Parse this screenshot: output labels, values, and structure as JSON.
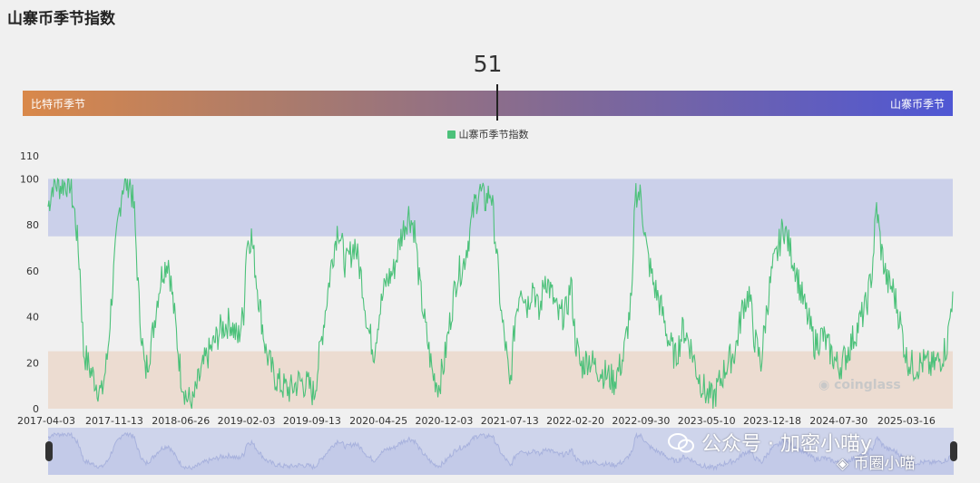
{
  "page": {
    "title": "山寨币季节指数"
  },
  "gauge": {
    "value": 51,
    "value_text": "51",
    "left_label": "比特币季节",
    "right_label": "山寨币季节"
  },
  "colors": {
    "series": "#4cc17a",
    "altseason_band": "#cbd0ea",
    "bitcoin_band": "#ecdcd1",
    "navigator_line": "#a8b2dd"
  },
  "watermark": {
    "wechat_label": "公众号 · 加密小喵y",
    "account_label": "币圈小喵",
    "wechat_icon": "wechat-icon",
    "account_icon": "binance-diamond-icon"
  },
  "brand": {
    "name": "coinglass",
    "icon": "coinglass-icon"
  },
  "chart_data": {
    "type": "line",
    "title": "山寨币季节指数",
    "legend": [
      "山寨币季节指数"
    ],
    "legend_position": "top-center",
    "ylim": [
      0,
      110
    ],
    "yticks": [
      0,
      20,
      40,
      60,
      80,
      100,
      110
    ],
    "ytick_labels": [
      "0",
      "20",
      "40",
      "60",
      "80",
      "100",
      "110"
    ],
    "xlim": [
      "2017-04-03",
      "2025-08-20"
    ],
    "xtick_labels": [
      "2017-04-03",
      "2017-11-13",
      "2018-06-26",
      "2019-02-03",
      "2019-09-13",
      "2020-04-25",
      "2020-12-03",
      "2021-07-13",
      "2022-02-20",
      "2022-09-30",
      "2023-05-10",
      "2023-12-18",
      "2024-07-30",
      "2025-03-16"
    ],
    "bands": [
      {
        "name": "altcoin season zone",
        "from": 75,
        "to": 100
      },
      {
        "name": "bitcoin season zone",
        "from": 0,
        "to": 25
      }
    ],
    "series": [
      {
        "name": "山寨币季节指数",
        "points": [
          [
            "2017-04-03",
            88
          ],
          [
            "2017-04-20",
            98
          ],
          [
            "2017-05-15",
            97
          ],
          [
            "2017-06-15",
            99
          ],
          [
            "2017-07-05",
            82
          ],
          [
            "2017-07-20",
            60
          ],
          [
            "2017-08-01",
            25
          ],
          [
            "2017-08-20",
            18
          ],
          [
            "2017-09-10",
            12
          ],
          [
            "2017-10-01",
            6
          ],
          [
            "2017-10-20",
            22
          ],
          [
            "2017-11-05",
            50
          ],
          [
            "2017-11-25",
            80
          ],
          [
            "2017-12-10",
            97
          ],
          [
            "2018-01-05",
            99
          ],
          [
            "2018-01-20",
            85
          ],
          [
            "2018-02-05",
            45
          ],
          [
            "2018-02-25",
            15
          ],
          [
            "2018-03-20",
            30
          ],
          [
            "2018-04-10",
            50
          ],
          [
            "2018-04-25",
            60
          ],
          [
            "2018-05-15",
            65
          ],
          [
            "2018-06-05",
            40
          ],
          [
            "2018-06-26",
            15
          ],
          [
            "2018-07-15",
            5
          ],
          [
            "2018-08-05",
            2
          ],
          [
            "2018-08-25",
            12
          ],
          [
            "2018-09-20",
            22
          ],
          [
            "2018-10-15",
            28
          ],
          [
            "2018-11-10",
            35
          ],
          [
            "2018-12-10",
            38
          ],
          [
            "2019-01-05",
            30
          ],
          [
            "2019-01-25",
            42
          ],
          [
            "2019-02-03",
            72
          ],
          [
            "2019-02-20",
            75
          ],
          [
            "2019-03-15",
            50
          ],
          [
            "2019-04-10",
            25
          ],
          [
            "2019-05-05",
            15
          ],
          [
            "2019-06-01",
            10
          ],
          [
            "2019-07-01",
            8
          ],
          [
            "2019-08-01",
            12
          ],
          [
            "2019-09-01",
            10
          ],
          [
            "2019-09-20",
            6
          ],
          [
            "2019-10-10",
            25
          ],
          [
            "2019-10-25",
            40
          ],
          [
            "2019-11-20",
            65
          ],
          [
            "2019-12-10",
            80
          ],
          [
            "2020-01-05",
            62
          ],
          [
            "2020-02-05",
            72
          ],
          [
            "2020-03-01",
            55
          ],
          [
            "2020-03-20",
            35
          ],
          [
            "2020-04-10",
            25
          ],
          [
            "2020-04-25",
            40
          ],
          [
            "2020-05-20",
            55
          ],
          [
            "2020-06-15",
            60
          ],
          [
            "2020-07-10",
            75
          ],
          [
            "2020-08-05",
            85
          ],
          [
            "2020-08-25",
            78
          ],
          [
            "2020-09-10",
            55
          ],
          [
            "2020-10-01",
            35
          ],
          [
            "2020-10-25",
            15
          ],
          [
            "2020-11-15",
            10
          ],
          [
            "2020-12-03",
            20
          ],
          [
            "2020-12-25",
            40
          ],
          [
            "2021-01-15",
            58
          ],
          [
            "2021-02-05",
            62
          ],
          [
            "2021-02-25",
            75
          ],
          [
            "2021-03-15",
            88
          ],
          [
            "2021-04-01",
            95
          ],
          [
            "2021-04-20",
            90
          ],
          [
            "2021-05-10",
            95
          ],
          [
            "2021-05-25",
            75
          ],
          [
            "2021-06-15",
            40
          ],
          [
            "2021-07-01",
            25
          ],
          [
            "2021-07-13",
            8
          ],
          [
            "2021-08-01",
            40
          ],
          [
            "2021-08-20",
            55
          ],
          [
            "2021-09-10",
            45
          ],
          [
            "2021-10-01",
            55
          ],
          [
            "2021-10-20",
            40
          ],
          [
            "2021-11-10",
            58
          ],
          [
            "2021-12-01",
            50
          ],
          [
            "2021-12-25",
            40
          ],
          [
            "2022-01-20",
            42
          ],
          [
            "2022-02-05",
            55
          ],
          [
            "2022-02-20",
            30
          ],
          [
            "2022-03-10",
            18
          ],
          [
            "2022-04-05",
            22
          ],
          [
            "2022-05-01",
            18
          ],
          [
            "2022-06-01",
            15
          ],
          [
            "2022-07-01",
            12
          ],
          [
            "2022-08-01",
            22
          ],
          [
            "2022-09-01",
            50
          ],
          [
            "2022-09-10",
            95
          ],
          [
            "2022-09-30",
            92
          ],
          [
            "2022-10-20",
            68
          ],
          [
            "2022-11-10",
            55
          ],
          [
            "2022-12-05",
            45
          ],
          [
            "2023-01-01",
            30
          ],
          [
            "2023-01-25",
            22
          ],
          [
            "2023-02-20",
            35
          ],
          [
            "2023-03-15",
            28
          ],
          [
            "2023-04-10",
            15
          ],
          [
            "2023-05-10",
            6
          ],
          [
            "2023-06-01",
            4
          ],
          [
            "2023-06-25",
            12
          ],
          [
            "2023-07-20",
            20
          ],
          [
            "2023-08-15",
            25
          ],
          [
            "2023-09-10",
            45
          ],
          [
            "2023-10-01",
            50
          ],
          [
            "2023-10-20",
            30
          ],
          [
            "2023-11-10",
            20
          ],
          [
            "2023-12-01",
            45
          ],
          [
            "2023-12-18",
            60
          ],
          [
            "2024-01-05",
            68
          ],
          [
            "2024-01-25",
            80
          ],
          [
            "2024-02-15",
            70
          ],
          [
            "2024-03-05",
            62
          ],
          [
            "2024-03-25",
            50
          ],
          [
            "2024-04-15",
            40
          ],
          [
            "2024-05-10",
            28
          ],
          [
            "2024-06-05",
            32
          ],
          [
            "2024-07-01",
            25
          ],
          [
            "2024-07-30",
            18
          ],
          [
            "2024-08-20",
            22
          ],
          [
            "2024-09-15",
            30
          ],
          [
            "2024-10-10",
            38
          ],
          [
            "2024-11-01",
            45
          ],
          [
            "2024-11-20",
            60
          ],
          [
            "2024-12-05",
            88
          ],
          [
            "2024-12-20",
            70
          ],
          [
            "2025-01-10",
            55
          ],
          [
            "2025-01-30",
            52
          ],
          [
            "2025-02-20",
            40
          ],
          [
            "2025-03-16",
            22
          ],
          [
            "2025-04-10",
            18
          ],
          [
            "2025-05-10",
            20
          ],
          [
            "2025-06-10",
            18
          ],
          [
            "2025-07-10",
            22
          ],
          [
            "2025-08-01",
            28
          ],
          [
            "2025-08-20",
            51
          ]
        ]
      }
    ]
  }
}
